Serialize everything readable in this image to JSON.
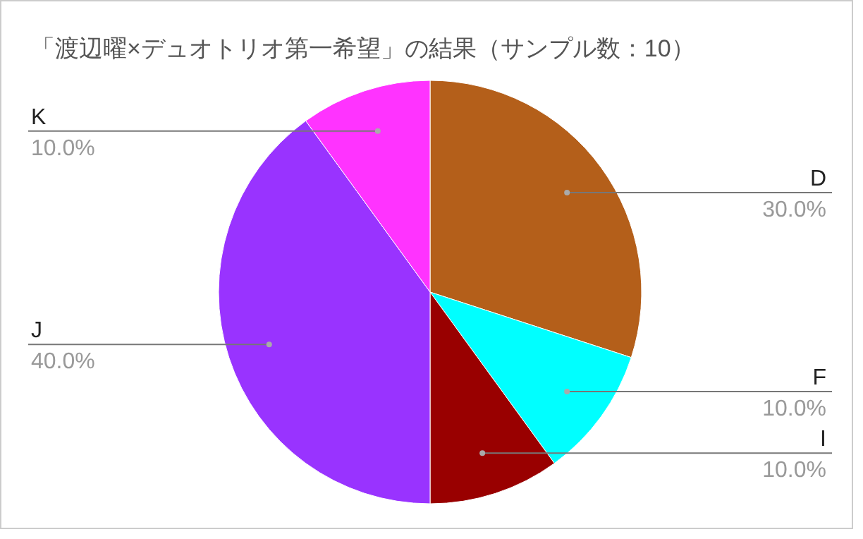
{
  "chart_data": {
    "type": "pie",
    "title": "「渡辺曜×デュオトリオ第一希望」の結果（サンプル数：10）",
    "categories": [
      "D",
      "F",
      "I",
      "J",
      "K"
    ],
    "values": [
      30,
      10,
      10,
      40,
      10
    ],
    "value_labels": [
      "30.0%",
      "10.0%",
      "10.0%",
      "40.0%",
      "10.0%"
    ],
    "colors": [
      "#b45f1a",
      "#00ffff",
      "#990000",
      "#9933ff",
      "#ff33ff"
    ]
  }
}
